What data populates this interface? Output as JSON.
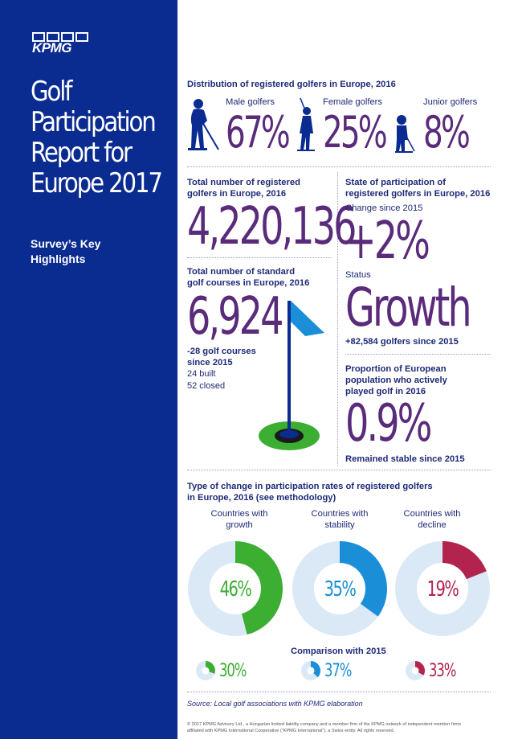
{
  "brand": {
    "logo": "KPMG",
    "color_primary": "#0a2b8f",
    "color_purple": "#5a2b7a"
  },
  "sidebar": {
    "title_lines": [
      "Golf",
      "Participation",
      "Report for",
      "Europe 2017"
    ],
    "subtitle_lines": [
      "Survey’s Key",
      "Highlights"
    ]
  },
  "distribution": {
    "heading": "Distribution of registered golfers in Europe, 2016",
    "male": {
      "label": "Male golfers",
      "value": "67%"
    },
    "female": {
      "label": "Female golfers",
      "value": "25%"
    },
    "junior": {
      "label": "Junior golfers",
      "value": "8%"
    }
  },
  "total_golfers": {
    "heading_lines": [
      "Total number of registered",
      "golfers in Europe, 2016"
    ],
    "value": "4,220,136"
  },
  "courses": {
    "heading_lines": [
      "Total number of standard",
      "golf courses in Europe, 2016"
    ],
    "value": "6,924",
    "change_lines": [
      "-28 golf courses",
      "since 2015"
    ],
    "built": "24 built",
    "closed": "52 closed"
  },
  "state": {
    "heading_lines": [
      "State of participation of",
      "registered golfers in Europe, 2016"
    ],
    "change_label": "Change since 2015",
    "change_value": "+2%",
    "status_label": "Status",
    "status_value": "Growth",
    "status_note": "+82,584 golfers since 2015"
  },
  "proportion": {
    "heading_lines": [
      "Proportion of European",
      "population who actively",
      "played golf in 2016"
    ],
    "value": "0.9%",
    "note": "Remained stable since 2015"
  },
  "change_types": {
    "heading_lines": [
      "Type of change in participation rates of registered golfers",
      "in Europe, 2016 (see methodology)"
    ],
    "comparison_label": "Comparison with 2015",
    "items": [
      {
        "label_lines": [
          "Countries with",
          "growth"
        ],
        "value": "46%",
        "pct": 46,
        "color": "#3cae32",
        "prev": "30%",
        "prev_pct": 30
      },
      {
        "label_lines": [
          "Countries with",
          "stability"
        ],
        "value": "35%",
        "pct": 35,
        "color": "#1a8fd8",
        "prev": "37%",
        "prev_pct": 37
      },
      {
        "label_lines": [
          "Countries with",
          "decline"
        ],
        "value": "19%",
        "pct": 19,
        "color": "#b2234e",
        "prev": "33%",
        "prev_pct": 33
      }
    ]
  },
  "source": "Source: Local golf associations with KPMG elaboration",
  "footer_lines": [
    "© 2017 KPMG Advisory Ltd., a Hungarian limited liability company and a member firm of the KPMG network of independent member firms",
    "affiliated with KPMG International Cooperative (“KPMG International”), a Swiss entity. All rights reserved."
  ]
}
